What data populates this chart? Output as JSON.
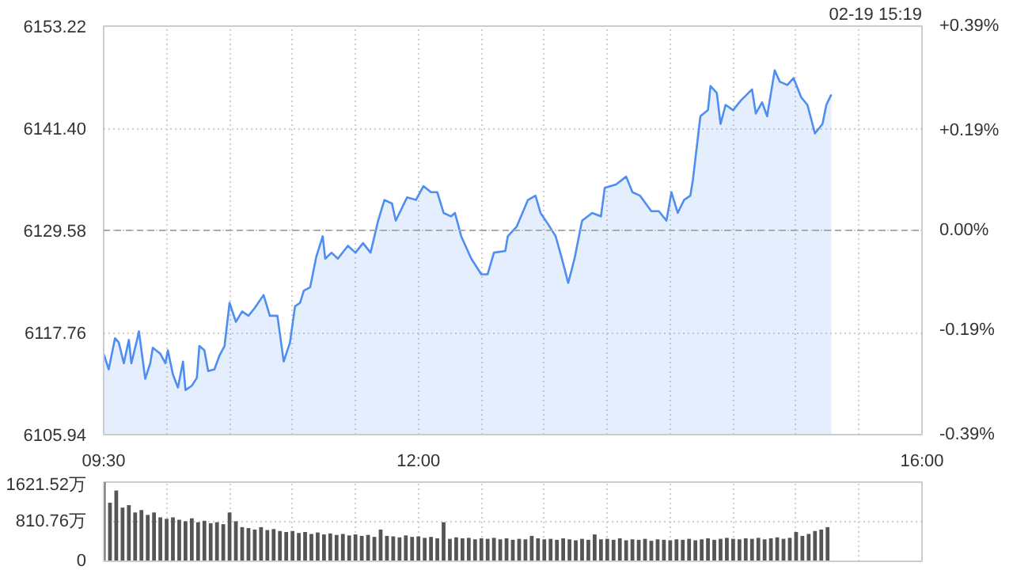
{
  "chart_data": [
    {
      "type": "area",
      "color": "#4d8ef0",
      "annotations": [
        "02-19 15:19"
      ],
      "x": [
        9.5,
        9.54,
        9.59,
        9.62,
        9.66,
        9.7,
        9.72,
        9.76,
        9.78,
        9.83,
        9.87,
        9.89,
        9.95,
        9.99,
        10.01,
        10.05,
        10.09,
        10.13,
        10.15,
        10.2,
        10.24,
        10.26,
        10.3,
        10.33,
        10.38,
        10.42,
        10.46,
        10.5,
        10.55,
        10.6,
        10.65,
        10.7,
        10.77,
        10.82,
        10.88,
        10.93,
        10.98,
        11.02,
        11.06,
        11.09,
        11.14,
        11.19,
        11.24,
        11.26,
        11.31,
        11.36,
        11.44,
        11.5,
        11.56,
        11.62,
        11.68,
        11.73,
        11.79,
        11.82,
        11.85,
        11.91,
        11.98,
        12.04,
        12.1,
        12.15,
        12.2,
        12.26,
        12.29,
        12.34,
        12.42,
        12.5,
        12.55,
        12.6,
        12.69,
        12.71,
        12.78,
        12.87,
        12.93,
        12.97,
        13.03,
        13.09,
        13.14,
        13.19,
        13.24,
        13.3,
        13.38,
        13.45,
        13.48,
        13.57,
        13.65,
        13.7,
        13.76,
        13.85,
        13.91,
        13.97,
        14.01,
        14.06,
        14.11,
        14.16,
        14.18,
        14.24,
        14.3,
        14.32,
        14.37,
        14.4,
        14.44,
        14.5,
        14.56,
        14.65,
        14.68,
        14.73,
        14.77,
        14.83,
        14.87,
        14.93,
        14.98,
        15.04,
        15.09,
        15.15,
        15.21,
        15.24,
        15.28
      ],
      "values": [
        6115.3,
        6113.5,
        6117.1,
        6116.6,
        6114.2,
        6116.9,
        6114.2,
        6116.6,
        6117.9,
        6112.4,
        6114.2,
        6116.0,
        6115.3,
        6114.2,
        6115.7,
        6112.9,
        6111.4,
        6114.4,
        6111.1,
        6111.6,
        6112.5,
        6116.2,
        6115.7,
        6113.3,
        6113.5,
        6115.1,
        6116.2,
        6121.2,
        6119.0,
        6120.2,
        6119.7,
        6120.6,
        6122.1,
        6119.7,
        6119.7,
        6114.4,
        6116.6,
        6120.8,
        6121.2,
        6122.6,
        6123.0,
        6126.6,
        6128.9,
        6126.3,
        6127.0,
        6126.3,
        6127.8,
        6127.0,
        6128.1,
        6127.0,
        6130.7,
        6133.1,
        6132.7,
        6130.7,
        6131.6,
        6133.4,
        6133.1,
        6134.7,
        6134.0,
        6134.0,
        6131.6,
        6131.2,
        6131.6,
        6128.9,
        6126.3,
        6124.5,
        6124.5,
        6127.0,
        6127.2,
        6128.9,
        6130.0,
        6133.1,
        6133.6,
        6131.6,
        6130.3,
        6128.9,
        6126.3,
        6123.5,
        6126.3,
        6130.7,
        6131.6,
        6131.2,
        6134.5,
        6134.9,
        6135.8,
        6134.0,
        6133.6,
        6131.8,
        6131.8,
        6130.7,
        6134.0,
        6131.6,
        6133.1,
        6133.6,
        6135.4,
        6142.8,
        6143.5,
        6146.3,
        6145.5,
        6141.9,
        6144.1,
        6143.5,
        6144.6,
        6145.9,
        6143.1,
        6144.4,
        6142.8,
        6148.1,
        6146.8,
        6146.4,
        6147.2,
        6145.0,
        6144.1,
        6140.8,
        6141.9,
        6144.1,
        6145.3
      ],
      "xlim": [
        9.5,
        16
      ],
      "xticks": [
        {
          "value": 9.5,
          "label": "09:30"
        },
        {
          "value": 10,
          "label": null
        },
        {
          "value": 10.5,
          "label": null
        },
        {
          "value": 11,
          "label": null
        },
        {
          "value": 11.5,
          "label": null
        },
        {
          "value": 12,
          "label": "12:00"
        },
        {
          "value": 12.5,
          "label": null
        },
        {
          "value": 13,
          "label": null
        },
        {
          "value": 13.5,
          "label": null
        },
        {
          "value": 14,
          "label": null
        },
        {
          "value": 14.5,
          "label": null
        },
        {
          "value": 15,
          "label": null
        },
        {
          "value": 15.5,
          "label": null
        },
        {
          "value": 16,
          "label": "16:00"
        }
      ],
      "ylim": [
        6105.94,
        6153.22
      ],
      "yticks": [
        6105.94,
        6117.76,
        6129.58,
        {
          "value": 6141.4,
          "label": "6141.40"
        },
        6153.22
      ],
      "y2lim": [
        -0.39,
        0.39
      ],
      "y2ticks": [
        {
          "value": -0.39,
          "label": "-0.39%"
        },
        {
          "value": -0.19,
          "label": "-0.19%"
        },
        {
          "value": 0,
          "label": "0.00%"
        },
        {
          "value": 0.19,
          "label": "+0.19%"
        },
        {
          "value": 0.39,
          "label": "+0.39%"
        }
      ],
      "ref_lines": [
        {
          "axis": "y",
          "value": 6129.58,
          "line_style": "dashed",
          "color": "#aaaaaa"
        }
      ],
      "grid": true
    },
    {
      "type": "bar",
      "color": "#555555",
      "tick_labels": "y",
      "x": [
        9.5,
        9.55,
        9.6,
        9.65,
        9.7,
        9.75,
        9.8,
        9.85,
        9.9,
        9.95,
        10.0,
        10.05,
        10.1,
        10.15,
        10.2,
        10.25,
        10.3,
        10.35,
        10.4,
        10.45,
        10.5,
        10.55,
        10.6,
        10.65,
        10.7,
        10.75,
        10.8,
        10.85,
        10.9,
        10.95,
        11.0,
        11.05,
        11.1,
        11.15,
        11.2,
        11.25,
        11.3,
        11.35,
        11.4,
        11.45,
        11.5,
        11.55,
        11.6,
        11.65,
        11.7,
        11.75,
        11.8,
        11.85,
        11.9,
        11.95,
        12.0,
        12.05,
        12.1,
        12.15,
        12.2,
        12.25,
        12.3,
        12.35,
        12.4,
        12.45,
        12.5,
        12.55,
        12.6,
        12.65,
        12.7,
        12.75,
        12.8,
        12.85,
        12.9,
        12.95,
        13.0,
        13.05,
        13.1,
        13.15,
        13.2,
        13.25,
        13.3,
        13.35,
        13.4,
        13.45,
        13.5,
        13.55,
        13.6,
        13.65,
        13.7,
        13.75,
        13.8,
        13.85,
        13.9,
        13.95,
        14.0,
        14.05,
        14.1,
        14.15,
        14.2,
        14.25,
        14.3,
        14.35,
        14.4,
        14.45,
        14.5,
        14.55,
        14.6,
        14.65,
        14.7,
        14.75,
        14.8,
        14.85,
        14.9,
        14.95,
        15.0,
        15.05,
        15.1,
        15.15,
        15.2,
        15.25
      ],
      "values": [
        1620,
        1200,
        1450,
        1100,
        1150,
        1000,
        1050,
        950,
        1000,
        900,
        870,
        900,
        850,
        820,
        880,
        800,
        830,
        780,
        800,
        760,
        1000,
        820,
        700,
        680,
        650,
        700,
        640,
        660,
        620,
        600,
        620,
        580,
        600,
        560,
        590,
        550,
        570,
        540,
        560,
        530,
        550,
        520,
        540,
        500,
        650,
        520,
        510,
        490,
        530,
        500,
        510,
        480,
        500,
        470,
        800,
        460,
        490,
        470,
        480,
        450,
        470,
        460,
        480,
        450,
        470,
        440,
        460,
        450,
        520,
        470,
        450,
        460,
        440,
        470,
        450,
        430,
        460,
        440,
        550,
        450,
        460,
        440,
        470,
        430,
        450,
        440,
        460,
        420,
        450,
        440,
        430,
        450,
        440,
        460,
        430,
        450,
        470,
        440,
        460,
        480,
        460,
        450,
        470,
        460,
        480,
        450,
        470,
        490,
        460,
        480,
        600,
        520,
        560,
        620,
        650,
        700
      ],
      "xlim": [
        9.5,
        16
      ],
      "xticks": [
        {
          "value": 9.5,
          "label": null
        },
        {
          "value": 10,
          "label": null
        },
        {
          "value": 10.5,
          "label": null
        },
        {
          "value": 11,
          "label": null
        },
        {
          "value": 11.5,
          "label": null
        },
        {
          "value": 12,
          "label": null
        },
        {
          "value": 12.5,
          "label": null
        },
        {
          "value": 13,
          "label": null
        },
        {
          "value": 13.5,
          "label": null
        },
        {
          "value": 14,
          "label": null
        },
        {
          "value": 14.5,
          "label": null
        },
        {
          "value": 15,
          "label": null
        },
        {
          "value": 15.5,
          "label": null
        },
        {
          "value": 16,
          "label": null
        }
      ],
      "ylim": [
        0,
        1621.52
      ],
      "yticks": [
        0,
        {
          "value": 810.76,
          "label": "810.76万"
        },
        {
          "value": 1621.52,
          "label": "1621.52万"
        }
      ],
      "grid": true
    }
  ]
}
